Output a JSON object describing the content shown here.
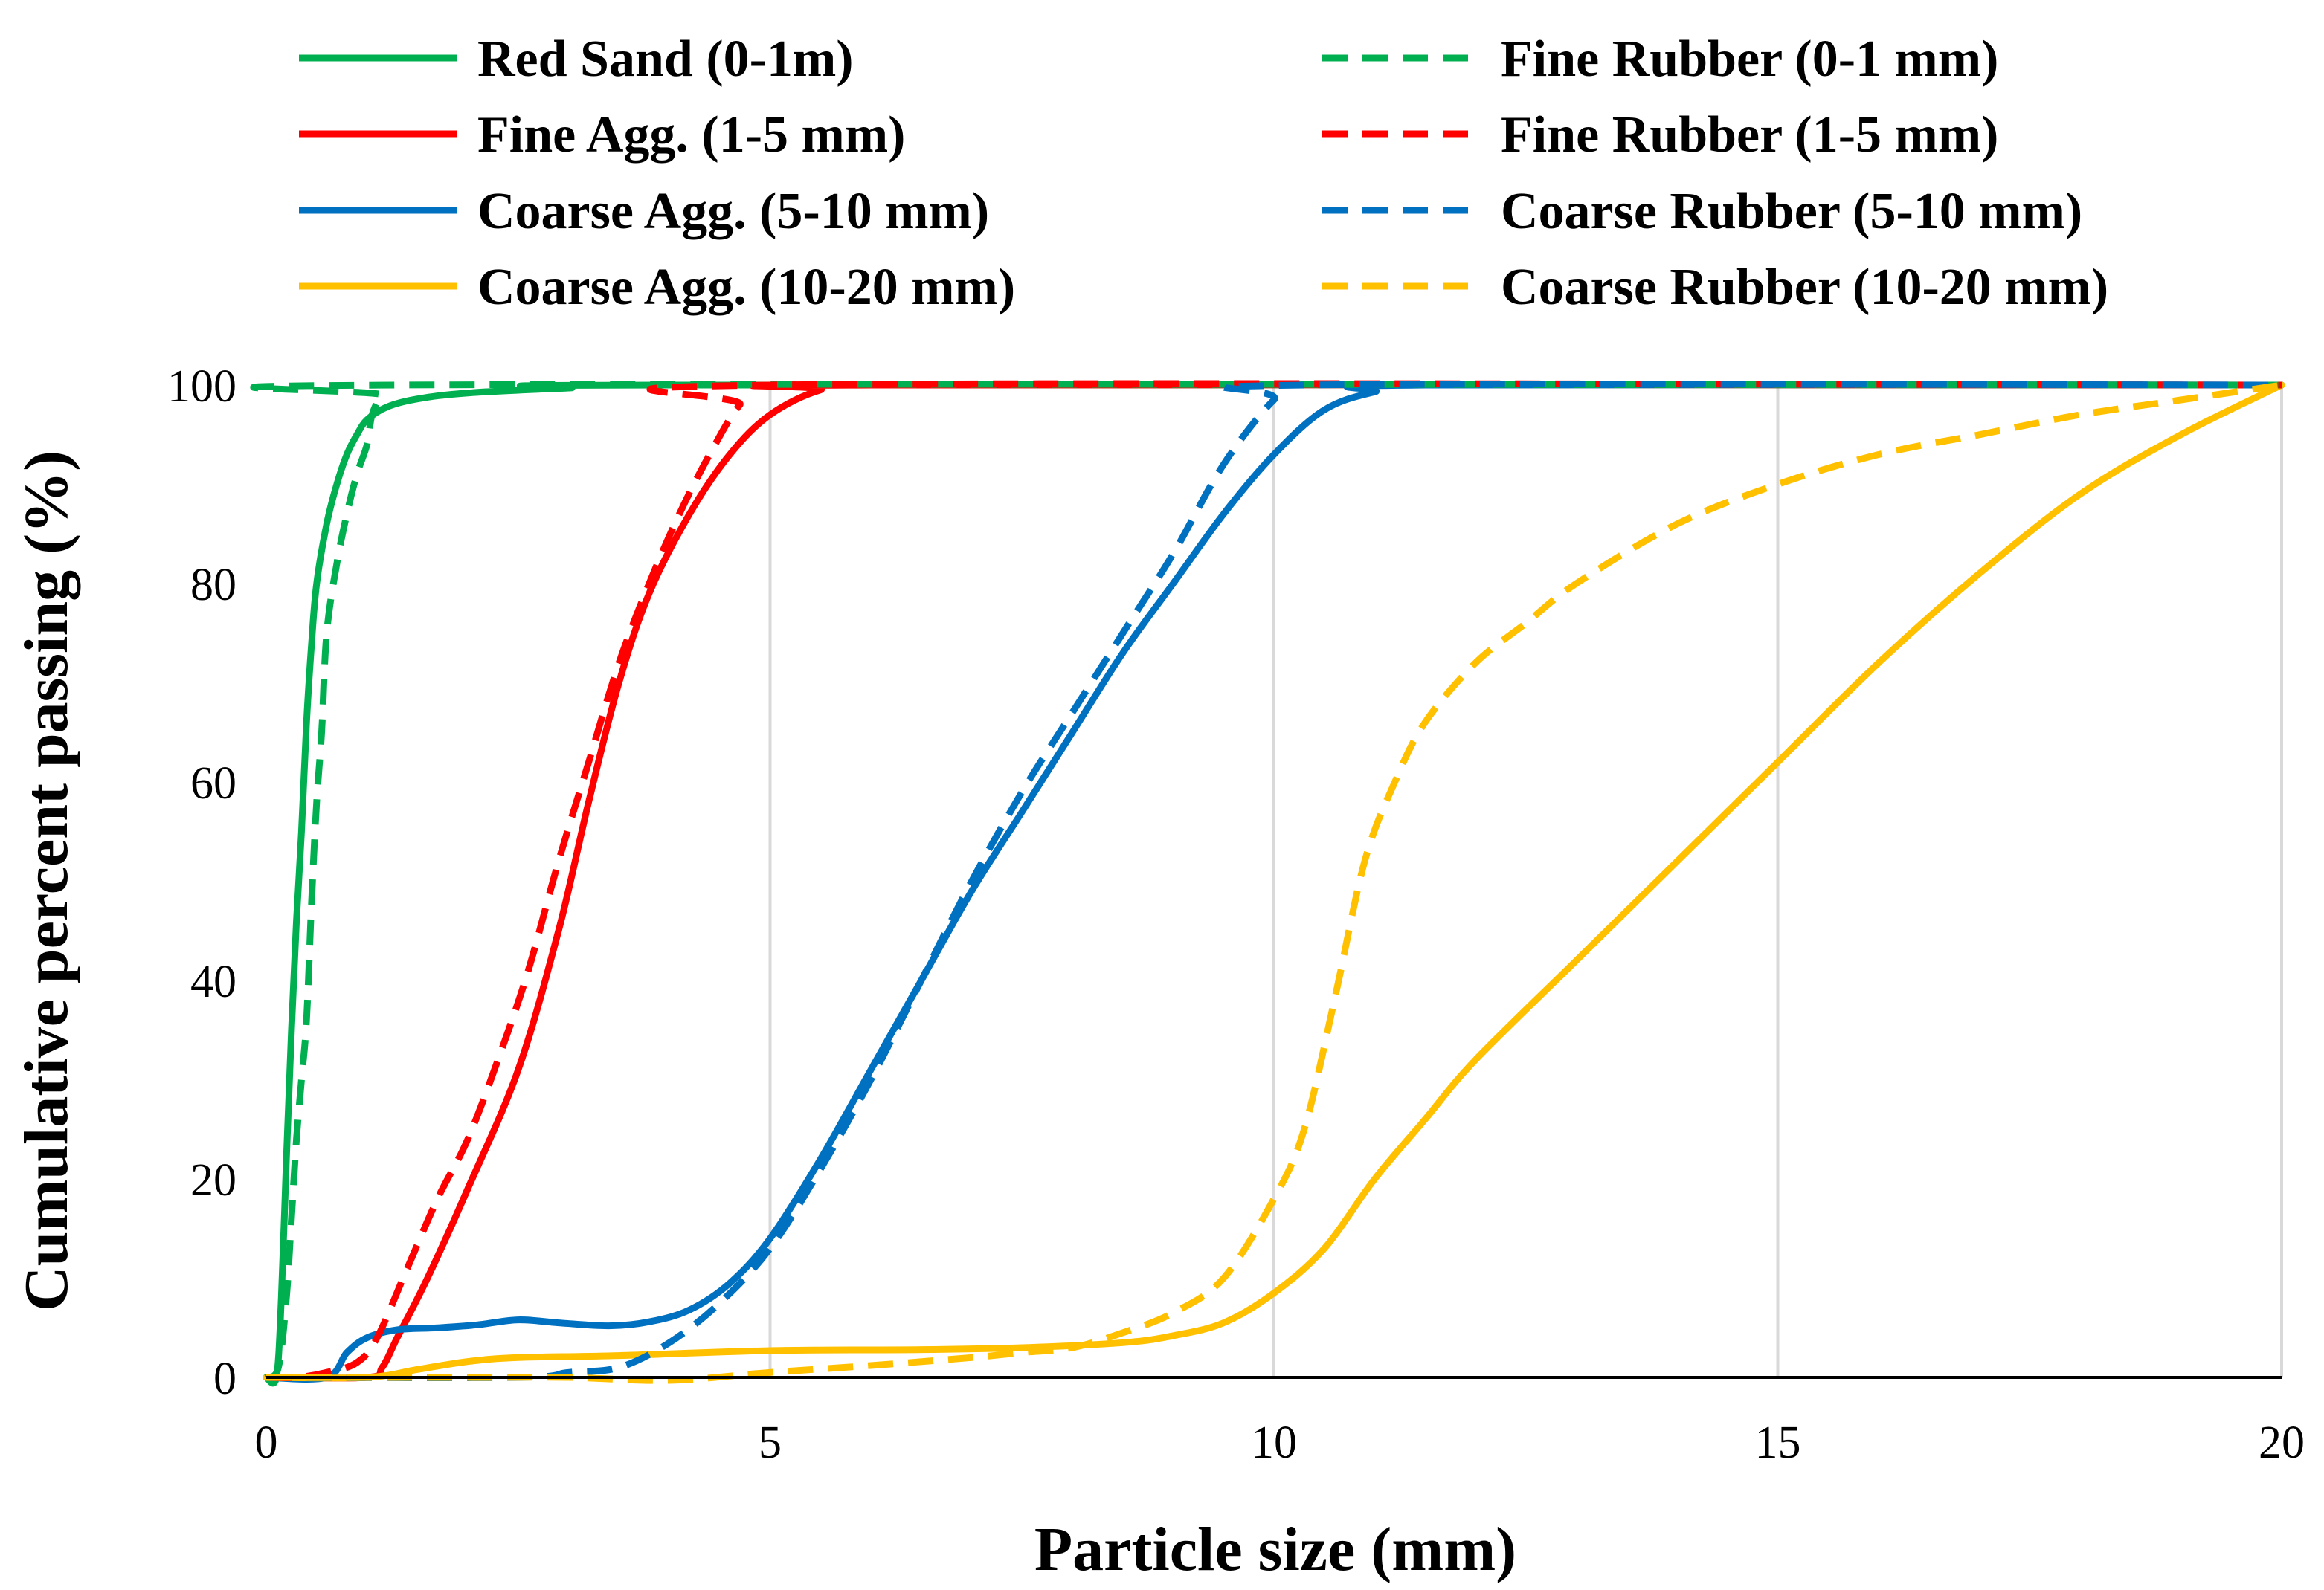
{
  "chart_data": {
    "type": "line",
    "title": "",
    "xlabel": "Particle size (mm)",
    "ylabel": "Cumulative percent passing (%)",
    "xlim": [
      0,
      20
    ],
    "ylim": [
      0,
      100
    ],
    "x_ticks": [
      "0",
      "5",
      "10",
      "15",
      "20"
    ],
    "y_ticks": [
      "0",
      "20",
      "40",
      "60",
      "80",
      "100"
    ],
    "grid": "vertical",
    "legend_position": "top",
    "series": [
      {
        "name": "Red Sand (0-1m)",
        "color": "#00b050",
        "dash": "solid",
        "points": [
          [
            0,
            0
          ],
          [
            0.1,
            0
          ],
          [
            0.15,
            8
          ],
          [
            0.2,
            22
          ],
          [
            0.25,
            35
          ],
          [
            0.3,
            46
          ],
          [
            0.35,
            55
          ],
          [
            0.4,
            66
          ],
          [
            0.45,
            74
          ],
          [
            0.5,
            80
          ],
          [
            0.6,
            86
          ],
          [
            0.7,
            90
          ],
          [
            0.8,
            93
          ],
          [
            0.9,
            95
          ],
          [
            1.0,
            96.5
          ],
          [
            1.2,
            97.8
          ],
          [
            1.5,
            98.6
          ],
          [
            2.0,
            99.2
          ],
          [
            3.0,
            99.7
          ],
          [
            4.0,
            100
          ],
          [
            20,
            100
          ]
        ]
      },
      {
        "name": "Fine Agg. (1-5 mm)",
        "color": "#ff0000",
        "dash": "solid",
        "points": [
          [
            0,
            0
          ],
          [
            1.0,
            0
          ],
          [
            1.15,
            1
          ],
          [
            1.3,
            4
          ],
          [
            1.6,
            10
          ],
          [
            2.0,
            19
          ],
          [
            2.5,
            31
          ],
          [
            2.9,
            45
          ],
          [
            3.2,
            58
          ],
          [
            3.5,
            70
          ],
          [
            3.8,
            79
          ],
          [
            4.2,
            87
          ],
          [
            4.6,
            93
          ],
          [
            5.0,
            97
          ],
          [
            5.5,
            99.5
          ],
          [
            6.0,
            100
          ],
          [
            20,
            100
          ]
        ]
      },
      {
        "name": "Coarse Agg. (5-10 mm)",
        "color": "#0070c0",
        "dash": "solid",
        "points": [
          [
            0,
            0
          ],
          [
            0.6,
            0
          ],
          [
            0.8,
            2.5
          ],
          [
            1.0,
            4
          ],
          [
            1.3,
            4.8
          ],
          [
            1.7,
            5
          ],
          [
            2.1,
            5.3
          ],
          [
            2.5,
            5.8
          ],
          [
            2.9,
            5.5
          ],
          [
            3.4,
            5.2
          ],
          [
            3.8,
            5.6
          ],
          [
            4.2,
            6.8
          ],
          [
            4.6,
            9.5
          ],
          [
            5.0,
            14
          ],
          [
            5.5,
            22
          ],
          [
            6.0,
            31
          ],
          [
            6.5,
            40
          ],
          [
            7.0,
            49
          ],
          [
            7.5,
            57
          ],
          [
            8.0,
            65
          ],
          [
            8.5,
            73
          ],
          [
            9.0,
            80
          ],
          [
            9.5,
            87
          ],
          [
            10.0,
            93
          ],
          [
            10.5,
            97.5
          ],
          [
            11.0,
            99.3
          ],
          [
            11.5,
            100
          ],
          [
            20,
            100
          ]
        ]
      },
      {
        "name": "Coarse Agg. (10-20 mm)",
        "color": "#ffc000",
        "dash": "solid",
        "points": [
          [
            0,
            0
          ],
          [
            1.0,
            0
          ],
          [
            1.5,
            0.8
          ],
          [
            2.0,
            1.6
          ],
          [
            2.5,
            2
          ],
          [
            3.5,
            2.2
          ],
          [
            5.0,
            2.7
          ],
          [
            6.5,
            2.8
          ],
          [
            7.5,
            3
          ],
          [
            8.5,
            3.5
          ],
          [
            9.0,
            4.2
          ],
          [
            9.5,
            5.5
          ],
          [
            10.0,
            8.5
          ],
          [
            10.5,
            13
          ],
          [
            11.0,
            20
          ],
          [
            11.5,
            26
          ],
          [
            12.0,
            32
          ],
          [
            13.0,
            42
          ],
          [
            14.0,
            52
          ],
          [
            15.0,
            62
          ],
          [
            16.0,
            72
          ],
          [
            17.0,
            81
          ],
          [
            18.0,
            89
          ],
          [
            19.0,
            95
          ],
          [
            20.0,
            100
          ]
        ]
      },
      {
        "name": "Fine Rubber (0-1 mm)",
        "color": "#00b050",
        "dash": "dashed",
        "points": [
          [
            0,
            0
          ],
          [
            0.12,
            1
          ],
          [
            0.2,
            8
          ],
          [
            0.25,
            16
          ],
          [
            0.3,
            24
          ],
          [
            0.35,
            30
          ],
          [
            0.4,
            36
          ],
          [
            0.45,
            48
          ],
          [
            0.5,
            58
          ],
          [
            0.55,
            65
          ],
          [
            0.6,
            75
          ],
          [
            0.7,
            82
          ],
          [
            0.8,
            87
          ],
          [
            0.9,
            91
          ],
          [
            1.0,
            94
          ],
          [
            1.05,
            97
          ],
          [
            1.15,
            99
          ],
          [
            1.3,
            100
          ],
          [
            20,
            100
          ]
        ]
      },
      {
        "name": "Fine Rubber (1-5 mm)",
        "color": "#ff0000",
        "dash": "dashed",
        "points": [
          [
            0,
            0
          ],
          [
            0.3,
            0
          ],
          [
            0.6,
            0.5
          ],
          [
            0.9,
            1.5
          ],
          [
            1.1,
            4
          ],
          [
            1.4,
            11
          ],
          [
            1.7,
            18
          ],
          [
            2.0,
            24
          ],
          [
            2.3,
            32
          ],
          [
            2.6,
            41
          ],
          [
            2.9,
            52
          ],
          [
            3.2,
            62
          ],
          [
            3.5,
            72
          ],
          [
            3.8,
            80
          ],
          [
            4.1,
            87
          ],
          [
            4.4,
            93
          ],
          [
            4.7,
            98
          ],
          [
            5.0,
            100
          ],
          [
            20,
            100
          ]
        ]
      },
      {
        "name": "Coarse Rubber (5-10 mm)",
        "color": "#0070c0",
        "dash": "dashed",
        "points": [
          [
            0,
            0
          ],
          [
            2.5,
            0
          ],
          [
            3.0,
            0.5
          ],
          [
            3.5,
            1
          ],
          [
            4.0,
            3.5
          ],
          [
            4.5,
            7.5
          ],
          [
            5.0,
            13
          ],
          [
            5.5,
            21
          ],
          [
            6.0,
            30
          ],
          [
            6.5,
            40
          ],
          [
            7.0,
            50
          ],
          [
            7.5,
            59
          ],
          [
            8.0,
            67
          ],
          [
            8.5,
            75
          ],
          [
            9.0,
            83
          ],
          [
            9.5,
            92
          ],
          [
            10.0,
            98.5
          ],
          [
            10.3,
            100
          ],
          [
            20,
            100
          ]
        ]
      },
      {
        "name": "Coarse Rubber (10-20 mm)",
        "color": "#ffc000",
        "dash": "dashed",
        "points": [
          [
            0,
            0
          ],
          [
            2.0,
            0
          ],
          [
            3.0,
            0
          ],
          [
            4.0,
            -0.3
          ],
          [
            5.0,
            0.5
          ],
          [
            6.0,
            1.2
          ],
          [
            7.0,
            2
          ],
          [
            7.5,
            2.5
          ],
          [
            8.0,
            3
          ],
          [
            8.5,
            4.5
          ],
          [
            9.0,
            6.5
          ],
          [
            9.5,
            10
          ],
          [
            10.0,
            18
          ],
          [
            10.3,
            25
          ],
          [
            10.6,
            38
          ],
          [
            10.9,
            52
          ],
          [
            11.2,
            60
          ],
          [
            11.5,
            66
          ],
          [
            12.0,
            72
          ],
          [
            12.5,
            76
          ],
          [
            13.0,
            80
          ],
          [
            14.0,
            86
          ],
          [
            15.0,
            90
          ],
          [
            16.0,
            93
          ],
          [
            17.0,
            95
          ],
          [
            18.0,
            97
          ],
          [
            19.0,
            98.5
          ],
          [
            20.0,
            100
          ]
        ]
      }
    ]
  }
}
